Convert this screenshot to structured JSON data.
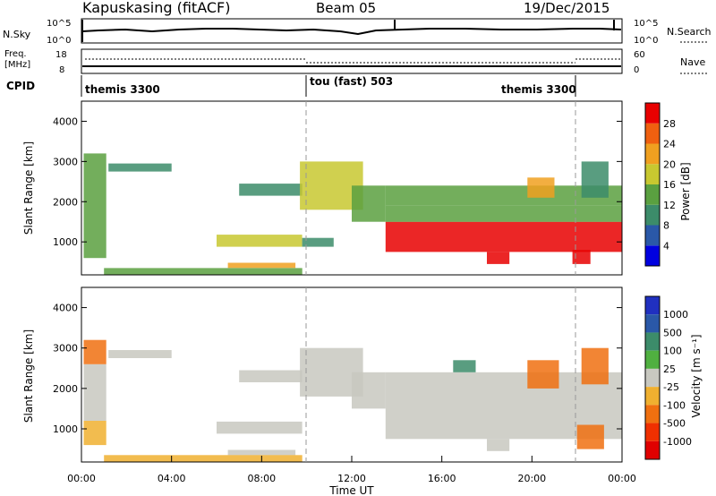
{
  "header": {
    "station": "Kapuskasing (fitACF)",
    "beam": "Beam 05",
    "date": "19/Dec/2015"
  },
  "panels": {
    "nsky": {
      "label": "N.Sky",
      "left_ticks": [
        "10^5",
        "10^0"
      ],
      "right_ticks": [
        "10^5",
        "10^0"
      ],
      "right_label": "N.Search"
    },
    "freq": {
      "label_line1": "Freq.",
      "label_line2": "[MHz]",
      "left_ticks": [
        "18",
        "8"
      ],
      "right_ticks": [
        "60",
        "0"
      ],
      "right_label": "Nave"
    },
    "cpid": {
      "label": "CPID",
      "segments": [
        "themis 3300",
        "tou (fast) 503",
        "themis 3300"
      ]
    }
  },
  "colorbars": {
    "power": {
      "label": "Power [dB]",
      "ticks": [
        "28",
        "24",
        "20",
        "16",
        "12",
        "8",
        "4"
      ],
      "colors": [
        "#0000e0",
        "#2a58a8",
        "#3c8c6a",
        "#5aa040",
        "#c8c830",
        "#f0a020",
        "#f06010",
        "#e80000"
      ]
    },
    "velocity": {
      "label": "Velocity [m s⁻¹]",
      "ticks": [
        "1000",
        "500",
        "100",
        "25",
        "-25",
        "-100",
        "-500",
        "-1000"
      ],
      "colors": [
        "#2030c0",
        "#2a58a8",
        "#3c8c6a",
        "#50b040",
        "#c8c8c0",
        "#f0b030",
        "#f07010",
        "#f03000",
        "#e00000"
      ]
    }
  },
  "axes": {
    "ylabel": "Slant Range [km]",
    "xlabel": "Time UT",
    "y_ticks": [
      "4000",
      "3000",
      "2000",
      "1000"
    ],
    "x_ticks": [
      "00:00",
      "04:00",
      "08:00",
      "12:00",
      "16:00",
      "20:00",
      "00:00"
    ]
  },
  "chart_data": [
    {
      "type": "heatmap",
      "quantity": "Power",
      "x_range_hours": [
        0,
        24
      ],
      "ylim": [
        180,
        4500
      ],
      "ylabel": "Slant Range [km]",
      "xlabel": "Time UT",
      "regions": [
        {
          "t0": 0.1,
          "t1": 1.1,
          "r0": 600,
          "r1": 3200,
          "value": 12
        },
        {
          "t0": 1.2,
          "t1": 4.0,
          "r0": 2750,
          "r1": 2950,
          "value": 8
        },
        {
          "t0": 6.0,
          "t1": 9.8,
          "r0": 880,
          "r1": 1180,
          "value": 18
        },
        {
          "t0": 6.5,
          "t1": 9.5,
          "r0": 350,
          "r1": 480,
          "value": 22
        },
        {
          "t0": 1.0,
          "t1": 9.8,
          "r0": 180,
          "r1": 350,
          "value": 14
        },
        {
          "t0": 9.8,
          "t1": 11.2,
          "r0": 880,
          "r1": 1100,
          "value": 10
        },
        {
          "t0": 7.0,
          "t1": 9.8,
          "r0": 2150,
          "r1": 2450,
          "value": 8
        },
        {
          "t0": 9.7,
          "t1": 12.5,
          "r0": 1800,
          "r1": 3000,
          "value": 16
        },
        {
          "t0": 12.0,
          "t1": 13.5,
          "r0": 1500,
          "r1": 2400,
          "value": 12
        },
        {
          "t0": 13.5,
          "t1": 24.0,
          "r0": 750,
          "r1": 1500,
          "value": 28
        },
        {
          "t0": 13.5,
          "t1": 24.0,
          "r0": 1500,
          "r1": 1900,
          "value": 12
        },
        {
          "t0": 13.5,
          "t1": 24.0,
          "r0": 1900,
          "r1": 2400,
          "value": 14
        },
        {
          "t0": 18.0,
          "t1": 19.0,
          "r0": 450,
          "r1": 750,
          "value": 28
        },
        {
          "t0": 21.8,
          "t1": 22.6,
          "r0": 450,
          "r1": 800,
          "value": 28
        },
        {
          "t0": 19.8,
          "t1": 21.0,
          "r0": 2100,
          "r1": 2600,
          "value": 20
        },
        {
          "t0": 22.2,
          "t1": 23.4,
          "r0": 2100,
          "r1": 3000,
          "value": 8
        }
      ]
    },
    {
      "type": "heatmap",
      "quantity": "Velocity",
      "x_range_hours": [
        0,
        24
      ],
      "ylim": [
        180,
        4500
      ],
      "ylabel": "Slant Range [km]",
      "xlabel": "Time UT",
      "regions": [
        {
          "t0": 0.1,
          "t1": 1.1,
          "r0": 600,
          "r1": 1200,
          "value": -100
        },
        {
          "t0": 0.1,
          "t1": 1.1,
          "r0": 1200,
          "r1": 2600,
          "value": 0
        },
        {
          "t0": 0.1,
          "t1": 1.1,
          "r0": 2600,
          "r1": 3200,
          "value": -500
        },
        {
          "t0": 1.2,
          "t1": 4.0,
          "r0": 2750,
          "r1": 2950,
          "value": 0
        },
        {
          "t0": 6.0,
          "t1": 9.8,
          "r0": 880,
          "r1": 1180,
          "value": 0
        },
        {
          "t0": 6.5,
          "t1": 9.5,
          "r0": 350,
          "r1": 480,
          "value": 0
        },
        {
          "t0": 1.0,
          "t1": 9.8,
          "r0": 180,
          "r1": 350,
          "value": -100
        },
        {
          "t0": 7.0,
          "t1": 9.8,
          "r0": 2150,
          "r1": 2450,
          "value": 0
        },
        {
          "t0": 9.7,
          "t1": 12.5,
          "r0": 1800,
          "r1": 3000,
          "value": 0
        },
        {
          "t0": 12.0,
          "t1": 13.5,
          "r0": 1500,
          "r1": 2400,
          "value": 0
        },
        {
          "t0": 13.5,
          "t1": 24.0,
          "r0": 750,
          "r1": 2400,
          "value": 0
        },
        {
          "t0": 18.0,
          "t1": 19.0,
          "r0": 450,
          "r1": 750,
          "value": 0
        },
        {
          "t0": 19.8,
          "t1": 21.2,
          "r0": 2000,
          "r1": 2700,
          "value": -500
        },
        {
          "t0": 22.0,
          "t1": 23.2,
          "r0": 500,
          "r1": 1100,
          "value": -500
        },
        {
          "t0": 22.2,
          "t1": 23.4,
          "r0": 2100,
          "r1": 3000,
          "value": -500
        },
        {
          "t0": 16.5,
          "t1": 17.5,
          "r0": 2400,
          "r1": 2700,
          "value": 100
        }
      ]
    }
  ]
}
